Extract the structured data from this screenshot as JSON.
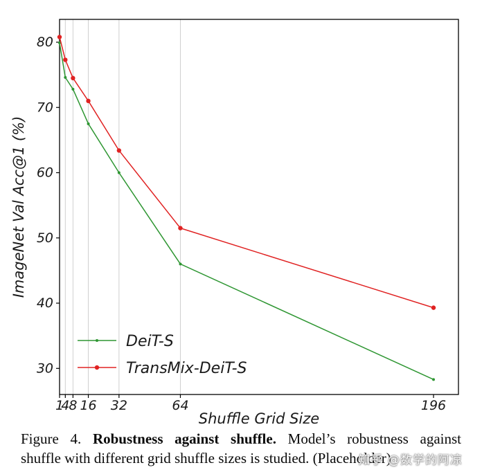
{
  "caption": {
    "line1_prefix": "Figure 4. ",
    "line1_bold": "Robustness against shuffle.",
    "line1_rest": " Model’s robustness against",
    "line2": "shuffle with different grid shuffle sizes is studied. (Placeholder)"
  },
  "watermark": "知乎 @数学的阿凉",
  "chart_data": {
    "type": "line",
    "title": "",
    "xlabel": "Shuffle Grid Size",
    "ylabel": "ImageNet Val Acc@1 (%)",
    "x": [
      1,
      4,
      8,
      16,
      32,
      64,
      196
    ],
    "x_tick_labels": [
      "1",
      "4",
      "8",
      "16",
      "32",
      "64",
      "196"
    ],
    "y_ticks": [
      30,
      40,
      50,
      60,
      70,
      80
    ],
    "xlim": [
      1,
      209
    ],
    "ylim": [
      26,
      83.5
    ],
    "grid_x": [
      4,
      8,
      16,
      32,
      64
    ],
    "grid": "vertical",
    "legend_position": "lower-left",
    "frame_color": "#000000",
    "grid_color": "#cfcfcf",
    "series": [
      {
        "name": "DeiT-S",
        "color": "#2e9632",
        "marker_radius": 2,
        "values": [
          79.9,
          74.6,
          72.8,
          67.5,
          60.0,
          46.0,
          28.3
        ]
      },
      {
        "name": "TransMix-DeiT-S",
        "color": "#e02222",
        "marker_radius": 3.2,
        "values": [
          80.8,
          77.3,
          74.5,
          71.0,
          63.4,
          51.5,
          39.3
        ]
      }
    ]
  }
}
